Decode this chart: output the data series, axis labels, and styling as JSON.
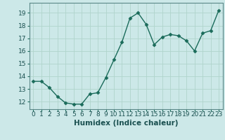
{
  "x": [
    0,
    1,
    2,
    3,
    4,
    5,
    6,
    7,
    8,
    9,
    10,
    11,
    12,
    13,
    14,
    15,
    16,
    17,
    18,
    19,
    20,
    21,
    22,
    23
  ],
  "y": [
    13.6,
    13.6,
    13.1,
    12.4,
    11.9,
    11.8,
    11.8,
    12.6,
    12.7,
    13.9,
    15.3,
    16.7,
    18.6,
    19.0,
    18.1,
    16.5,
    17.1,
    17.3,
    17.2,
    16.8,
    16.0,
    17.4,
    17.6,
    19.2
  ],
  "line_color": "#1a6b5a",
  "marker": "D",
  "markersize": 2.5,
  "linewidth": 1.0,
  "bg_color": "#cce8e8",
  "grid_color": "#b0d4cc",
  "xlabel": "Humidex (Indice chaleur)",
  "xlabel_fontsize": 7.5,
  "ylabel_ticks": [
    12,
    13,
    14,
    15,
    16,
    17,
    18,
    19
  ],
  "ylim": [
    11.4,
    19.8
  ],
  "xlim": [
    -0.5,
    23.5
  ],
  "tick_fontsize": 6.5
}
